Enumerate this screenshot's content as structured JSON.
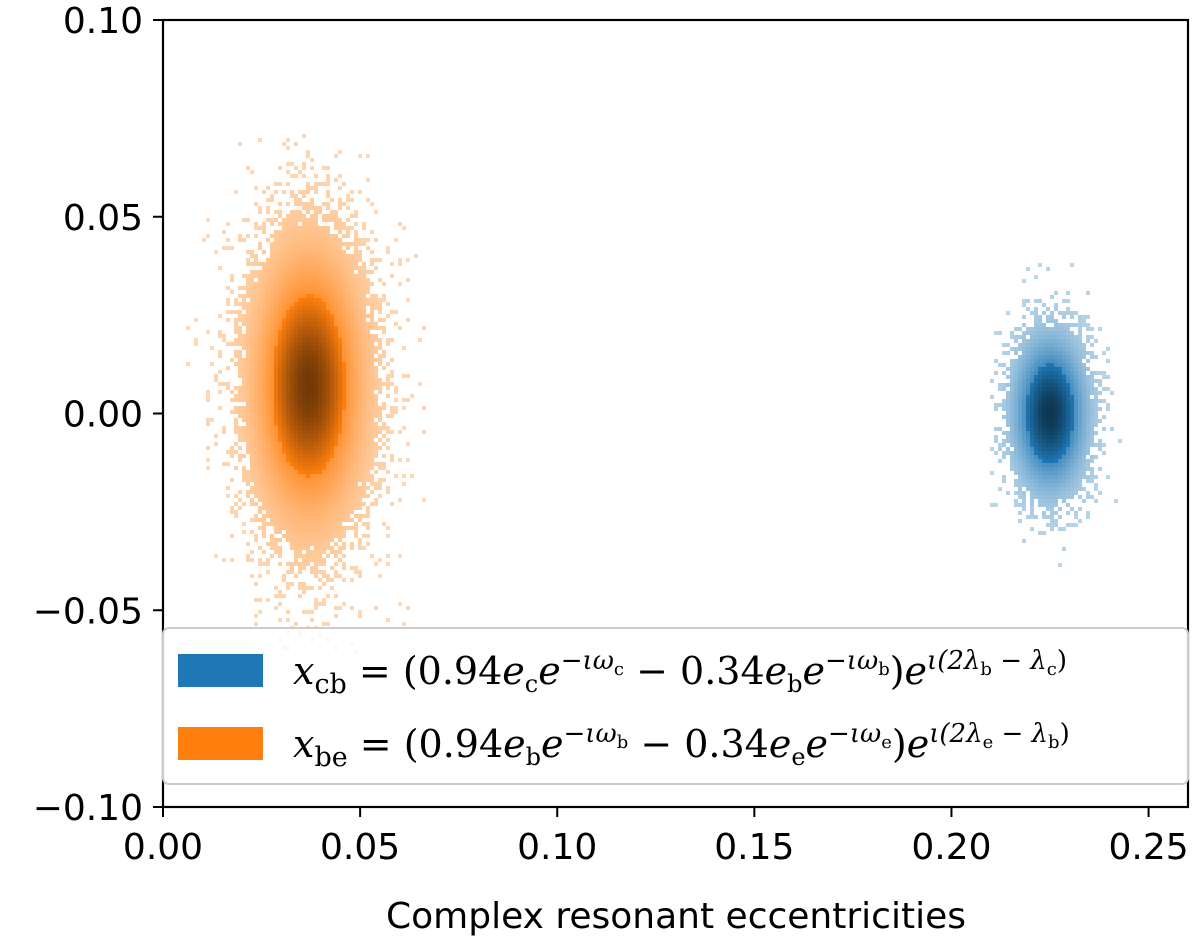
{
  "chart_data": {
    "type": "heatmap",
    "title": "",
    "xlabel": "Complex resonant eccentricities",
    "ylabel": "",
    "xlim": [
      0.0,
      0.26
    ],
    "ylim": [
      -0.1,
      0.1
    ],
    "x_ticks": [
      0.0,
      0.05,
      0.1,
      0.15,
      0.2,
      0.25
    ],
    "x_tick_labels": [
      "0.00",
      "0.05",
      "0.10",
      "0.15",
      "0.20",
      "0.25"
    ],
    "y_ticks": [
      -0.1,
      -0.05,
      0.0,
      0.05,
      0.1
    ],
    "y_tick_labels": [
      "−0.10",
      "−0.05",
      "0.00",
      "0.05",
      "0.10"
    ],
    "grid": false,
    "legend_position": "lower-right",
    "series": [
      {
        "name": "x_cb",
        "legend_label": "x_cb = (0.94 e_c e^{-ιω_c} − 0.34 e_b e^{-ιω_b}) e^{ι(2λ_b − λ_c)}",
        "color": "#1f77b4",
        "center": [
          0.225,
          0.0
        ],
        "std": [
          0.0055,
          0.0115
        ],
        "x_range": [
          0.21,
          0.245
        ],
        "y_range": [
          -0.043,
          0.038
        ]
      },
      {
        "name": "x_be",
        "legend_label": "x_be = (0.94 e_b e^{-ιω_b} − 0.34 e_e e^{-ιω_e}) e^{ι(2λ_e − λ_b)}",
        "color": "#ff7f0e",
        "center": [
          0.037,
          0.007
        ],
        "std": [
          0.0085,
          0.021
        ],
        "x_range": [
          0.003,
          0.067
        ],
        "y_range": [
          -0.075,
          0.073
        ]
      }
    ]
  },
  "legend": {
    "cb": {
      "var": "x",
      "sub": "cb",
      "coef1": "0.94",
      "e1": "e",
      "e1_sub": "c",
      "exp1": "−ιω",
      "exp1_sub": "c",
      "coef2": "0.34",
      "e2_sub": "b",
      "exp2_sub": "b",
      "phase_a": "ι(2λ",
      "phase_a_sub": "b",
      "phase_b": " − λ",
      "phase_b_sub": "c",
      "phase_end": ")"
    },
    "be": {
      "var": "x",
      "sub": "be",
      "coef1": "0.94",
      "e1": "e",
      "e1_sub": "b",
      "exp1": "−ιω",
      "exp1_sub": "b",
      "coef2": "0.34",
      "e2_sub": "e",
      "exp2_sub": "e",
      "phase_a": "ι(2λ",
      "phase_a_sub": "e",
      "phase_b": " − λ",
      "phase_b_sub": "b",
      "phase_end": ")"
    }
  }
}
